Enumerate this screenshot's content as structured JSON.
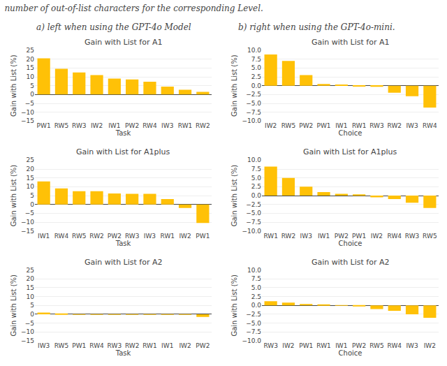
{
  "title": "number of out-of-list characters for the corresponding Level.",
  "annotations": [
    "a) left when using the GPT-4o Model",
    "b) right when using the GPT-4o-mini."
  ],
  "chart_data": [
    {
      "type": "bar",
      "title": "Gain with List for A1",
      "xlabel": "Task",
      "ylabel": "Gain with List (%)",
      "categories": [
        "PW1",
        "RW5",
        "RW3",
        "IW2",
        "IW1",
        "PW2",
        "RW4",
        "IW3",
        "RW1",
        "RW2"
      ],
      "values": [
        20.5,
        14.5,
        12.5,
        11.0,
        9.0,
        8.5,
        7.2,
        4.5,
        2.7,
        1.5
      ],
      "color": "#FFC107",
      "ylim": [
        -15,
        25
      ],
      "yticks": [
        -15,
        -10,
        -5,
        0,
        5,
        10,
        15,
        20,
        25
      ],
      "grid": true
    },
    {
      "type": "bar",
      "title": "Gain with List for A1",
      "xlabel": "Choice",
      "ylabel": "Gain with List (%)",
      "categories": [
        "IW2",
        "RW5",
        "PW2",
        "PW1",
        "IW1",
        "RW1",
        "RW3",
        "RW2",
        "IW3",
        "RW4"
      ],
      "values": [
        8.8,
        7.0,
        3.0,
        0.5,
        0.3,
        -0.1,
        -0.3,
        -2.0,
        -3.0,
        -6.2
      ],
      "color": "#FFC107",
      "ylim": [
        -10.0,
        10.0
      ],
      "yticks": [
        {
          "value": -10.0,
          "label": "−10.0"
        },
        -7.5,
        {
          "value": -5.0,
          "label": "−5.0"
        },
        -2.5,
        {
          "value": 0.0,
          "label": "0.0"
        },
        2.5,
        {
          "value": 5.0,
          "label": "5.0"
        },
        7.5,
        {
          "value": 10.0,
          "label": "10.0"
        }
      ],
      "grid": true
    },
    {
      "type": "bar",
      "title": "Gain with List for A1plus",
      "xlabel": "Task",
      "ylabel": "Gain with List (%)",
      "categories": [
        "IW1",
        "RW4",
        "RW5",
        "RW2",
        "PW2",
        "RW3",
        "IW3",
        "RW1",
        "IW2",
        "PW1"
      ],
      "values": [
        13.0,
        9.0,
        7.5,
        7.5,
        6.2,
        6.0,
        6.0,
        3.0,
        -2.0,
        -10.5
      ],
      "color": "#FFC107",
      "ylim": [
        -15,
        25
      ],
      "yticks": [
        -15,
        -10,
        -5,
        0,
        5,
        10,
        15,
        20,
        25
      ],
      "grid": true
    },
    {
      "type": "bar",
      "title": "Gain with List for A1plus",
      "xlabel": "Choice",
      "ylabel": "Gain with List (%)",
      "categories": [
        "RW1",
        "RW2",
        "IW3",
        "IW1",
        "PW2",
        "PW1",
        "IW2",
        "RW4",
        "RW3",
        "RW5"
      ],
      "values": [
        8.2,
        5.0,
        2.5,
        1.0,
        0.5,
        0.3,
        -0.5,
        -1.0,
        -2.0,
        -3.5
      ],
      "color": "#FFC107",
      "ylim": [
        -10.0,
        10.0
      ],
      "yticks": [
        {
          "value": -10.0,
          "label": "−10.0"
        },
        -7.5,
        {
          "value": -5.0,
          "label": "−5.0"
        },
        -2.5,
        {
          "value": 0.0,
          "label": "0.0"
        },
        2.5,
        {
          "value": 5.0,
          "label": "5.0"
        },
        7.5,
        {
          "value": 10.0,
          "label": "10.0"
        }
      ],
      "grid": true
    },
    {
      "type": "bar",
      "title": "Gain with List for A2",
      "xlabel": "Task",
      "ylabel": "Gain with List (%)",
      "categories": [
        "IW3",
        "RW5",
        "PW1",
        "RW4",
        "RW3",
        "RW2",
        "RW1",
        "IW1",
        "IW2",
        "PW2"
      ],
      "values": [
        1.0,
        0.4,
        -0.03,
        -0.03,
        -0.05,
        -0.08,
        -0.1,
        -0.1,
        -0.15,
        -1.5
      ],
      "color": "#FFC107",
      "ylim": [
        -15,
        25
      ],
      "yticks": [
        -15,
        -10,
        -5,
        0,
        5,
        10,
        15,
        20,
        25
      ],
      "grid": true
    },
    {
      "type": "bar",
      "title": "Gain with List for A2",
      "xlabel": "Choice",
      "ylabel": "Gain with List (%)",
      "categories": [
        "RW3",
        "IW2",
        "PW1",
        "RW1",
        "IW1",
        "PW2",
        "RW5",
        "RW4",
        "IW3",
        "IW2"
      ],
      "values": [
        1.2,
        0.8,
        0.4,
        0.2,
        0.1,
        -0.3,
        -1.0,
        -1.5,
        -2.5,
        -3.5
      ],
      "color": "#FFC107",
      "ylim": [
        -10.0,
        10.0
      ],
      "yticks": [
        {
          "value": -10.0,
          "label": "−10.0"
        },
        -7.5,
        {
          "value": -5.0,
          "label": "−5.0"
        },
        -2.5,
        {
          "value": 0.0,
          "label": "0.0"
        },
        2.5,
        {
          "value": 5.0,
          "label": "5.0"
        },
        7.5,
        {
          "value": 10.0,
          "label": "10.0"
        }
      ],
      "grid": true
    }
  ]
}
